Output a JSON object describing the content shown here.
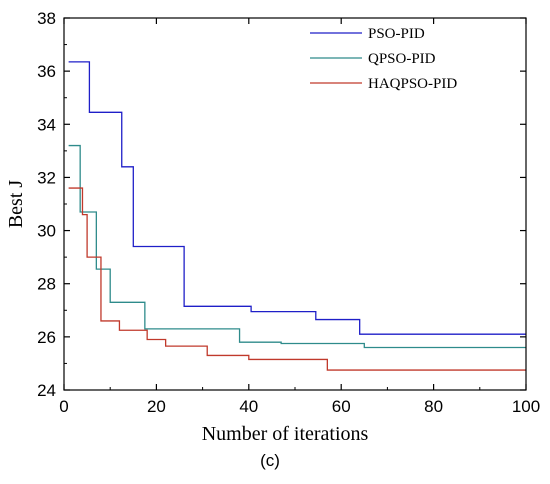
{
  "chart_data": {
    "type": "line",
    "title": "",
    "xlabel": "Number of iterations",
    "ylabel": "Best J",
    "panel_label": "(c)",
    "xlim": [
      0,
      100
    ],
    "ylim": [
      24,
      38
    ],
    "xticks": [
      0,
      20,
      40,
      60,
      80,
      100
    ],
    "yticks": [
      24,
      26,
      28,
      30,
      32,
      34,
      36,
      38
    ],
    "legend_position": "top-right",
    "step": true,
    "series": [
      {
        "name": "PSO-PID",
        "color": "#1f1fc8",
        "points": [
          [
            1,
            36.35
          ],
          [
            5.5,
            34.45
          ],
          [
            12.5,
            32.4
          ],
          [
            13.5,
            32.4
          ],
          [
            15,
            29.4
          ],
          [
            26,
            27.15
          ],
          [
            40.5,
            26.95
          ],
          [
            54.5,
            26.65
          ],
          [
            64,
            26.1
          ],
          [
            100,
            26.1
          ]
        ]
      },
      {
        "name": "QPSO-PID",
        "color": "#2e8b8b",
        "points": [
          [
            1,
            33.2
          ],
          [
            3.5,
            30.7
          ],
          [
            7,
            28.55
          ],
          [
            10,
            27.3
          ],
          [
            17.5,
            26.3
          ],
          [
            38,
            25.8
          ],
          [
            47,
            25.75
          ],
          [
            65,
            25.6
          ],
          [
            100,
            25.6
          ]
        ]
      },
      {
        "name": "HAQPSO-PID",
        "color": "#c0392b",
        "points": [
          [
            1,
            31.6
          ],
          [
            4,
            30.6
          ],
          [
            5,
            29.0
          ],
          [
            8,
            26.6
          ],
          [
            12,
            26.25
          ],
          [
            18,
            25.9
          ],
          [
            22,
            25.65
          ],
          [
            31,
            25.3
          ],
          [
            40,
            25.15
          ],
          [
            57,
            24.75
          ],
          [
            100,
            24.75
          ]
        ]
      }
    ]
  }
}
